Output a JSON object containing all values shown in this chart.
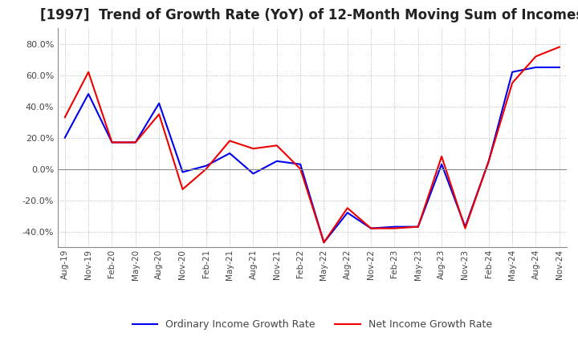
{
  "title": "[1997]  Trend of Growth Rate (YoY) of 12-Month Moving Sum of Incomes",
  "ylim": [
    -50,
    90
  ],
  "yticks": [
    -40.0,
    -20.0,
    0.0,
    20.0,
    40.0,
    60.0,
    80.0
  ],
  "x_labels": [
    "Aug-19",
    "Nov-19",
    "Feb-20",
    "May-20",
    "Aug-20",
    "Nov-20",
    "Feb-21",
    "May-21",
    "Aug-21",
    "Nov-21",
    "Feb-22",
    "May-22",
    "Aug-22",
    "Nov-22",
    "Feb-23",
    "May-23",
    "Aug-23",
    "Nov-23",
    "Feb-24",
    "May-24",
    "Aug-24",
    "Nov-24"
  ],
  "ordinary_income": [
    20,
    48,
    17,
    17,
    42,
    -2,
    2,
    10,
    -3,
    5,
    3,
    -47,
    -28,
    -38,
    -37,
    -37,
    3,
    -37,
    5,
    62,
    65,
    65
  ],
  "net_income": [
    33,
    62,
    17,
    17,
    35,
    -13,
    0,
    18,
    13,
    15,
    0,
    -47,
    -25,
    -38,
    -38,
    -37,
    8,
    -38,
    5,
    55,
    72,
    78
  ],
  "ordinary_color": "#0000EE",
  "net_color": "#EE0000",
  "background_color": "#FFFFFF",
  "grid_color": "#AAAAAA",
  "title_fontsize": 12,
  "axis_border_color": "#888888",
  "legend_ordinary": "Ordinary Income Growth Rate",
  "legend_net": "Net Income Growth Rate"
}
